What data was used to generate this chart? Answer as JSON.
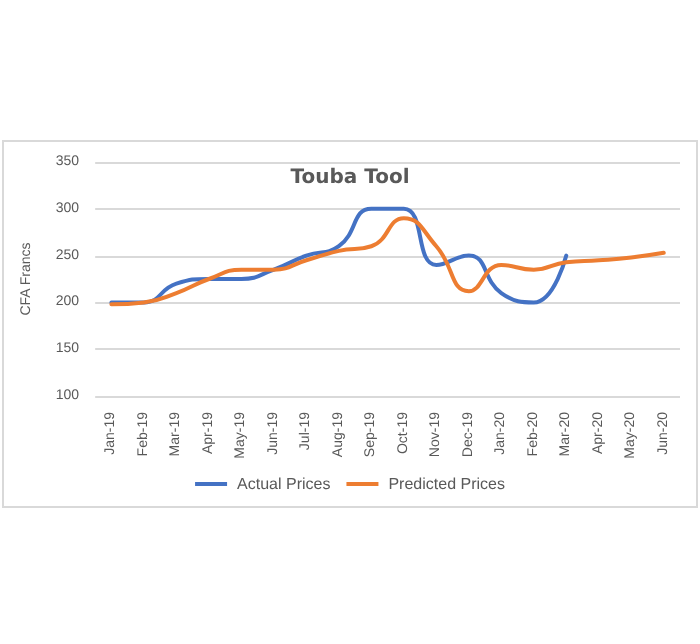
{
  "chart_data": {
    "type": "line",
    "title": "Touba Tool",
    "ylabel": "CFA Francs",
    "categories": [
      "Jan-19",
      "Feb-19",
      "Mar-19",
      "Apr-19",
      "May-19",
      "Jun-19",
      "Jul-19",
      "Aug-19",
      "Sep-19",
      "Oct-19",
      "Nov-19",
      "Dec-19",
      "Jan-20",
      "Feb-20",
      "Mar-20",
      "Apr-20",
      "May-20",
      "Jun-20"
    ],
    "series": [
      {
        "name": "Actual Prices",
        "color": "#4472c4",
        "values": [
          200,
          200,
          220,
          225,
          225,
          235,
          250,
          260,
          300,
          300,
          240,
          250,
          210,
          200,
          250,
          null,
          null,
          null
        ]
      },
      {
        "name": "Predicted Prices",
        "color": "#ed7d31",
        "values": [
          198,
          200,
          210,
          225,
          235,
          235,
          245,
          255,
          260,
          290,
          260,
          212,
          240,
          235,
          243,
          245,
          248,
          253
        ]
      }
    ],
    "ylim": [
      100,
      350
    ],
    "yticks": [
      100,
      150,
      200,
      250,
      300,
      350
    ],
    "grid": "y",
    "legend": "bottom",
    "marker": "none"
  }
}
